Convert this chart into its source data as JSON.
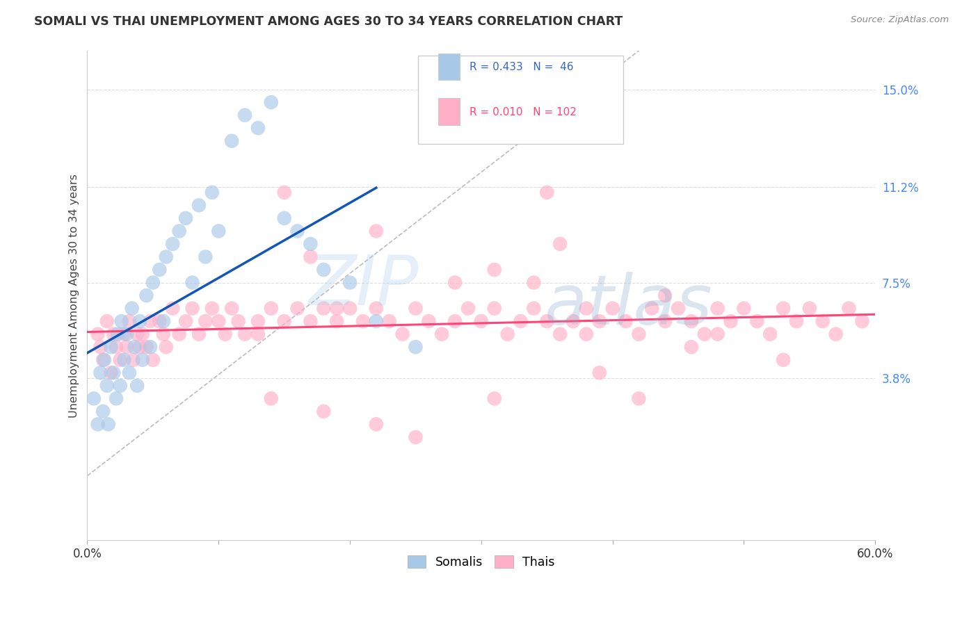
{
  "title": "SOMALI VS THAI UNEMPLOYMENT AMONG AGES 30 TO 34 YEARS CORRELATION CHART",
  "source": "Source: ZipAtlas.com",
  "ylabel": "Unemployment Among Ages 30 to 34 years",
  "xlim": [
    0.0,
    0.6
  ],
  "ylim": [
    -0.025,
    0.165
  ],
  "xtick_positions": [
    0.0,
    0.1,
    0.2,
    0.3,
    0.4,
    0.5,
    0.6
  ],
  "xticklabels": [
    "0.0%",
    "",
    "",
    "",
    "",
    "",
    "60.0%"
  ],
  "ytick_positions": [
    0.038,
    0.075,
    0.112,
    0.15
  ],
  "ytick_labels": [
    "3.8%",
    "7.5%",
    "11.2%",
    "15.0%"
  ],
  "somali_R": 0.433,
  "somali_N": 46,
  "thai_R": 0.01,
  "thai_N": 102,
  "somali_color": "#A8C8E8",
  "thai_color": "#FFB0C8",
  "somali_line_color": "#1155BB",
  "thai_line_color": "#FF4477",
  "diagonal_color": "#BBBBBB",
  "background_color": "#FFFFFF",
  "grid_color": "#DDDDDD",
  "watermark_color": "#C8DDEF",
  "title_color": "#333333",
  "source_color": "#888888",
  "ytick_color": "#4488FF",
  "xtick_color": "#333333",
  "legend_edge_color": "#CCCCCC",
  "somali_x": [
    0.005,
    0.008,
    0.01,
    0.012,
    0.013,
    0.015,
    0.016,
    0.018,
    0.02,
    0.022,
    0.023,
    0.025,
    0.026,
    0.028,
    0.03,
    0.032,
    0.034,
    0.036,
    0.038,
    0.04,
    0.042,
    0.045,
    0.048,
    0.05,
    0.055,
    0.058,
    0.06,
    0.065,
    0.07,
    0.075,
    0.08,
    0.085,
    0.09,
    0.095,
    0.1,
    0.11,
    0.12,
    0.13,
    0.14,
    0.15,
    0.16,
    0.17,
    0.18,
    0.2,
    0.22,
    0.25
  ],
  "somali_y": [
    0.03,
    0.02,
    0.04,
    0.025,
    0.045,
    0.035,
    0.02,
    0.05,
    0.04,
    0.03,
    0.055,
    0.035,
    0.06,
    0.045,
    0.055,
    0.04,
    0.065,
    0.05,
    0.035,
    0.06,
    0.045,
    0.07,
    0.05,
    0.075,
    0.08,
    0.06,
    0.085,
    0.09,
    0.095,
    0.1,
    0.075,
    0.105,
    0.085,
    0.11,
    0.095,
    0.13,
    0.14,
    0.135,
    0.145,
    0.1,
    0.095,
    0.09,
    0.08,
    0.075,
    0.06,
    0.05
  ],
  "thai_x": [
    0.008,
    0.01,
    0.012,
    0.015,
    0.018,
    0.02,
    0.022,
    0.025,
    0.028,
    0.03,
    0.032,
    0.035,
    0.038,
    0.04,
    0.042,
    0.045,
    0.048,
    0.05,
    0.055,
    0.058,
    0.06,
    0.065,
    0.07,
    0.075,
    0.08,
    0.085,
    0.09,
    0.095,
    0.1,
    0.105,
    0.11,
    0.115,
    0.12,
    0.13,
    0.14,
    0.15,
    0.16,
    0.17,
    0.18,
    0.19,
    0.2,
    0.21,
    0.22,
    0.23,
    0.24,
    0.25,
    0.26,
    0.27,
    0.28,
    0.29,
    0.3,
    0.31,
    0.32,
    0.33,
    0.34,
    0.35,
    0.36,
    0.37,
    0.38,
    0.39,
    0.4,
    0.41,
    0.42,
    0.43,
    0.44,
    0.45,
    0.46,
    0.47,
    0.48,
    0.49,
    0.5,
    0.51,
    0.52,
    0.53,
    0.54,
    0.55,
    0.56,
    0.57,
    0.58,
    0.59,
    0.34,
    0.35,
    0.36,
    0.15,
    0.22,
    0.13,
    0.28,
    0.31,
    0.19,
    0.17,
    0.44,
    0.53,
    0.48,
    0.39,
    0.42,
    0.46,
    0.22,
    0.25,
    0.18,
    0.31,
    0.14,
    0.38
  ],
  "thai_y": [
    0.055,
    0.05,
    0.045,
    0.06,
    0.04,
    0.055,
    0.05,
    0.045,
    0.055,
    0.05,
    0.06,
    0.045,
    0.055,
    0.05,
    0.055,
    0.05,
    0.06,
    0.045,
    0.06,
    0.055,
    0.05,
    0.065,
    0.055,
    0.06,
    0.065,
    0.055,
    0.06,
    0.065,
    0.06,
    0.055,
    0.065,
    0.06,
    0.055,
    0.06,
    0.065,
    0.06,
    0.065,
    0.06,
    0.065,
    0.06,
    0.065,
    0.06,
    0.065,
    0.06,
    0.055,
    0.065,
    0.06,
    0.055,
    0.06,
    0.065,
    0.06,
    0.065,
    0.055,
    0.06,
    0.065,
    0.06,
    0.055,
    0.06,
    0.065,
    0.06,
    0.065,
    0.06,
    0.055,
    0.065,
    0.06,
    0.065,
    0.06,
    0.055,
    0.065,
    0.06,
    0.065,
    0.06,
    0.055,
    0.065,
    0.06,
    0.065,
    0.06,
    0.055,
    0.065,
    0.06,
    0.075,
    0.11,
    0.09,
    0.11,
    0.095,
    0.055,
    0.075,
    0.08,
    0.065,
    0.085,
    0.07,
    0.045,
    0.055,
    0.04,
    0.03,
    0.05,
    0.02,
    0.015,
    0.025,
    0.03,
    0.03,
    0.055
  ]
}
